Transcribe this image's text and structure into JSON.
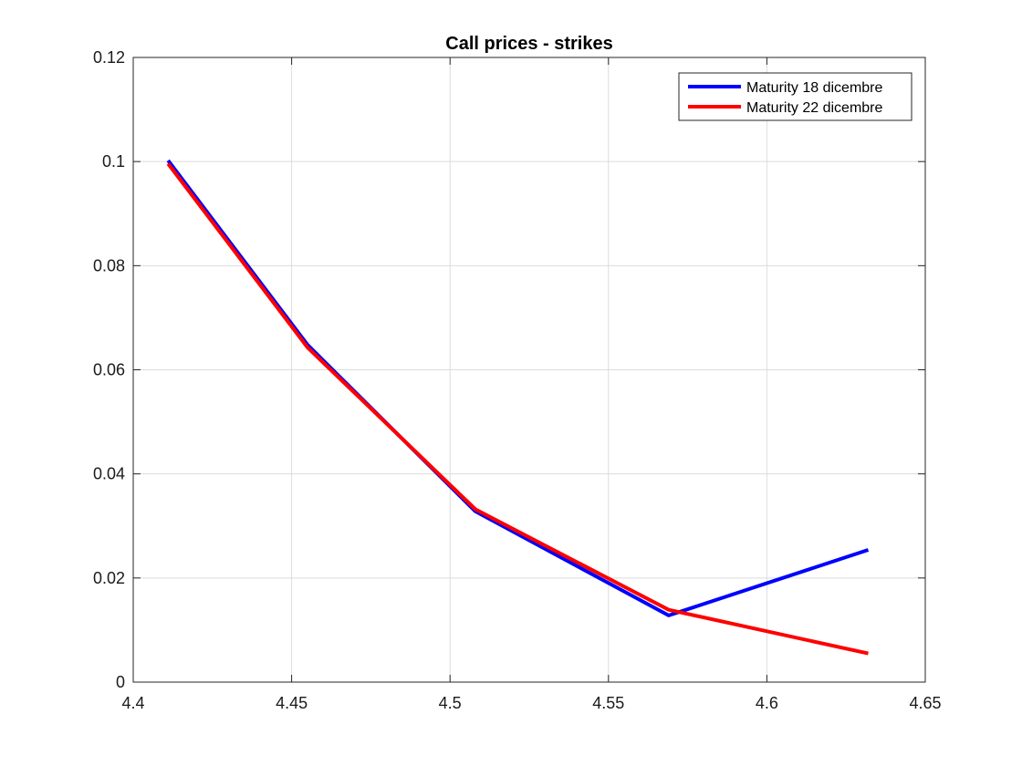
{
  "chart_data": {
    "type": "line",
    "title": "Call prices - strikes",
    "xlabel": "",
    "ylabel": "",
    "xlim": [
      4.4,
      4.65
    ],
    "ylim": [
      0,
      0.12
    ],
    "xticks": [
      "4.4",
      "4.45",
      "4.5",
      "4.55",
      "4.6",
      "4.65"
    ],
    "yticks": [
      "0",
      "0.02",
      "0.04",
      "0.06",
      "0.08",
      "0.1",
      "0.12"
    ],
    "grid": true,
    "legend_position": "top-right",
    "series": [
      {
        "name": "Maturity 18 dicembre",
        "color": "#0000ff",
        "x": [
          4.411,
          4.455,
          4.508,
          4.569,
          4.632
        ],
        "y": [
          0.1002,
          0.0648,
          0.0328,
          0.0128,
          0.0254
        ]
      },
      {
        "name": "Maturity 22 dicembre",
        "color": "#ff0000",
        "x": [
          4.411,
          4.455,
          4.508,
          4.569,
          4.632
        ],
        "y": [
          0.0996,
          0.0643,
          0.0332,
          0.0139,
          0.0055
        ]
      }
    ]
  }
}
